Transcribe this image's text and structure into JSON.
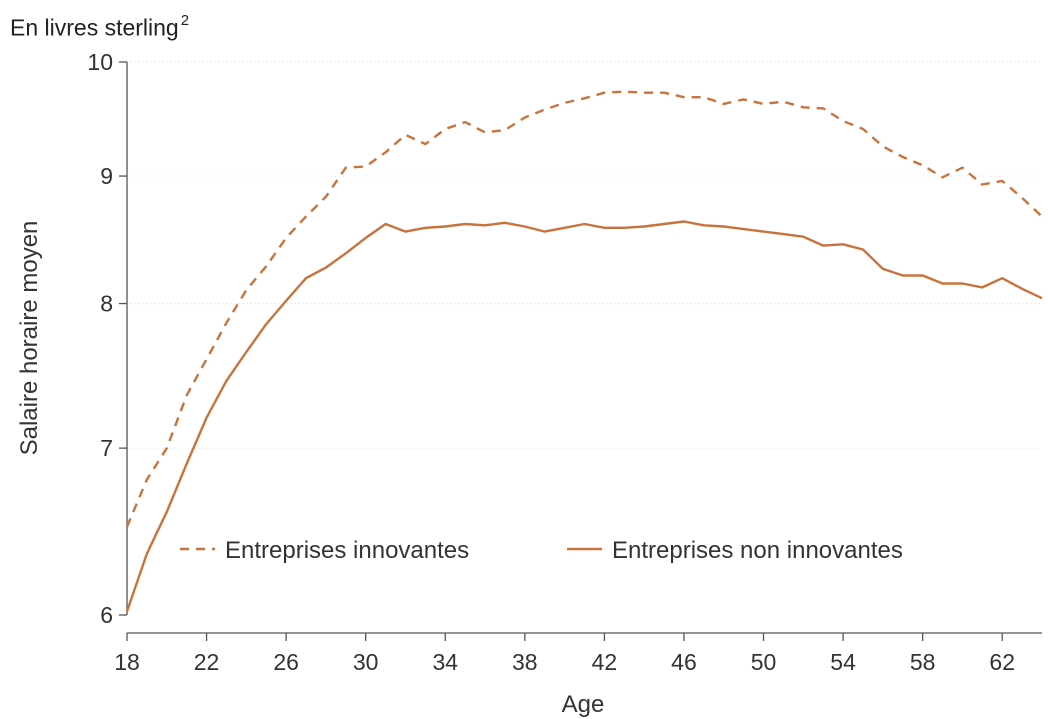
{
  "unit_note": {
    "text": "En livres sterling",
    "superscript": "2"
  },
  "colors": {
    "series": "#c8733c",
    "axis": "#555555",
    "grid": "#d8d8d8"
  },
  "chart_data": {
    "type": "line",
    "xlabel": "Age",
    "ylabel": "Salaire horaire moyen",
    "xlim": [
      18,
      64
    ],
    "ylim": [
      6,
      10
    ],
    "y_scale": "log",
    "xticks": [
      18,
      22,
      26,
      30,
      34,
      38,
      42,
      46,
      50,
      54,
      58,
      62
    ],
    "yticks": [
      6,
      7,
      8,
      9,
      10
    ],
    "grid": "horizontal, dotted",
    "legend": "inside, lower-middle",
    "x": [
      18,
      19,
      20,
      21,
      22,
      23,
      24,
      25,
      26,
      27,
      28,
      29,
      30,
      31,
      32,
      33,
      34,
      35,
      36,
      37,
      38,
      39,
      40,
      41,
      42,
      43,
      44,
      45,
      46,
      47,
      48,
      49,
      50,
      51,
      52,
      53,
      54,
      55,
      56,
      57,
      58,
      59,
      60,
      61,
      62,
      63,
      64
    ],
    "series": [
      {
        "name": "Entreprises innovantes",
        "style": "dashed",
        "values": [
          6.51,
          6.8,
          7.0,
          7.35,
          7.6,
          7.86,
          8.1,
          8.28,
          8.5,
          8.67,
          8.83,
          9.07,
          9.08,
          9.2,
          9.35,
          9.27,
          9.4,
          9.46,
          9.37,
          9.39,
          9.5,
          9.57,
          9.63,
          9.67,
          9.72,
          9.73,
          9.72,
          9.72,
          9.68,
          9.68,
          9.62,
          9.66,
          9.62,
          9.64,
          9.59,
          9.58,
          9.47,
          9.4,
          9.25,
          9.16,
          9.09,
          8.99,
          9.07,
          8.93,
          8.96,
          8.82,
          8.67
        ]
      },
      {
        "name": "Entreprises non innovantes",
        "style": "solid",
        "values": [
          6.02,
          6.35,
          6.6,
          6.9,
          7.2,
          7.45,
          7.65,
          7.85,
          8.02,
          8.19,
          8.27,
          8.38,
          8.5,
          8.61,
          8.55,
          8.58,
          8.59,
          8.61,
          8.6,
          8.62,
          8.59,
          8.55,
          8.58,
          8.61,
          8.58,
          8.58,
          8.59,
          8.61,
          8.63,
          8.6,
          8.59,
          8.57,
          8.55,
          8.53,
          8.51,
          8.44,
          8.45,
          8.41,
          8.26,
          8.21,
          8.21,
          8.15,
          8.15,
          8.12,
          8.19,
          8.11,
          8.04
        ]
      }
    ]
  }
}
